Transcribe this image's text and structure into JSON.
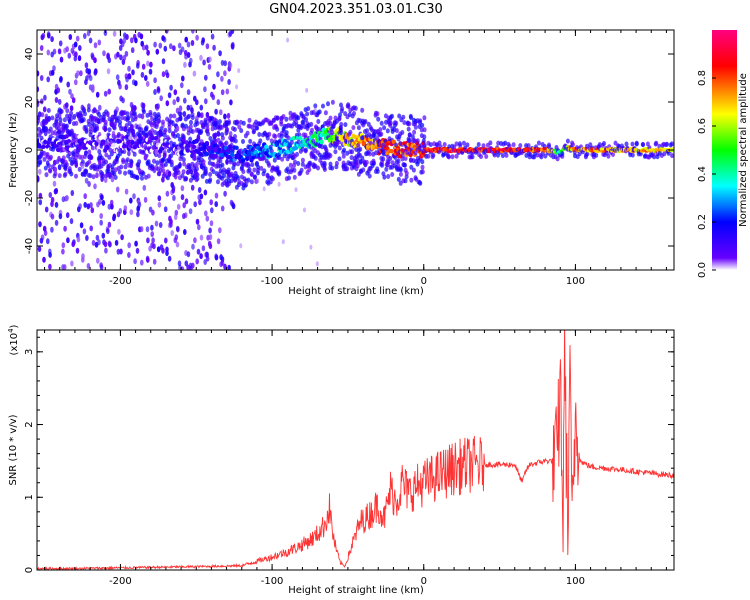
{
  "title": "GN04.2023.351.03.01.C30",
  "colors": {
    "signal": "#ff3333",
    "spectrogram_low": "#6a00ff",
    "colorbar_scale": [
      "#6600ff",
      "#0000ff",
      "#00ffff",
      "#00ff00",
      "#ffff00",
      "#ff0000",
      "#ff0080"
    ]
  },
  "chart_data": [
    {
      "type": "heatmap",
      "xlabel": "Height of straight line (km)",
      "ylabel": "Frequency (Hz)",
      "xlim": [
        -255,
        165
      ],
      "ylim": [
        -50,
        50
      ],
      "x_ticks": [
        -200,
        -100,
        0,
        100
      ],
      "x_tick_labels": [
        "-200",
        "-100",
        "0",
        "100"
      ],
      "y_ticks": [
        -40,
        -20,
        0,
        20,
        40
      ],
      "y_tick_labels": [
        "-40",
        "-20",
        "0",
        "20",
        "40"
      ],
      "colorbar": {
        "label": "Normalized spectral amplitude",
        "range": [
          0,
          1
        ],
        "ticks": [
          0.0,
          0.2,
          0.4,
          0.6,
          0.8
        ],
        "tick_labels": [
          "0.0",
          "0.2",
          "0.4",
          "0.6",
          "0.8"
        ]
      },
      "ridge": {
        "x": [
          -230,
          -180,
          -150,
          -120,
          -100,
          -80,
          -65,
          -55,
          -45,
          -35,
          -25,
          -15,
          -5,
          0,
          50,
          80,
          90,
          95,
          100,
          130,
          165
        ],
        "frequency": [
          3,
          2,
          1,
          -2,
          0,
          3,
          6,
          6,
          4,
          2,
          1,
          0,
          0,
          0,
          0,
          0,
          -1,
          1,
          0,
          0,
          0
        ],
        "amplitude": [
          0.15,
          0.12,
          0.2,
          0.3,
          0.4,
          0.45,
          0.55,
          0.75,
          0.8,
          0.85,
          0.9,
          0.9,
          0.9,
          0.95,
          0.95,
          0.9,
          0.55,
          0.7,
          0.85,
          0.8,
          0.8
        ]
      },
      "noise_region_x": [
        -255,
        -125
      ]
    },
    {
      "type": "line",
      "xlabel": "Height of straight line (km)",
      "ylabel": "SNR (10 * v/v)",
      "y_multiplier": "(x10",
      "y_multiplier_exp": "4",
      "y_multiplier_close": ")",
      "xlim": [
        -255,
        165
      ],
      "ylim": [
        0,
        3.3
      ],
      "x_ticks": [
        -200,
        -100,
        0,
        100
      ],
      "x_tick_labels": [
        "-200",
        "-100",
        "0",
        "100"
      ],
      "y_ticks": [
        0,
        1,
        2,
        3
      ],
      "y_tick_labels": [
        "0",
        "1",
        "2",
        "3"
      ],
      "series": [
        {
          "x": [
            -255,
            -230,
            -200,
            -170,
            -140,
            -120,
            -110,
            -100,
            -90,
            -80,
            -72,
            -66,
            -62,
            -60,
            -58,
            -55,
            -52,
            -48,
            -42,
            -36,
            -30,
            -26,
            -22,
            -18,
            -14,
            -10,
            -5,
            0,
            10,
            20,
            30,
            40,
            50,
            60,
            65,
            67,
            70,
            80,
            88,
            90,
            92,
            93,
            95,
            96,
            98,
            100,
            103,
            110,
            130,
            150,
            165
          ],
          "values": [
            0.02,
            0.02,
            0.03,
            0.04,
            0.05,
            0.06,
            0.12,
            0.18,
            0.25,
            0.35,
            0.45,
            0.6,
            0.85,
            0.5,
            0.3,
            0.1,
            0.05,
            0.3,
            0.65,
            0.75,
            0.9,
            0.7,
            1.1,
            0.95,
            1.2,
            1.05,
            1.15,
            1.2,
            1.3,
            1.4,
            1.45,
            1.45,
            1.45,
            1.45,
            1.2,
            1.35,
            1.45,
            1.5,
            1.5,
            2.6,
            0.6,
            3.3,
            0.05,
            2.9,
            0.5,
            2.2,
            1.5,
            1.42,
            1.38,
            1.33,
            1.3
          ]
        }
      ]
    }
  ]
}
